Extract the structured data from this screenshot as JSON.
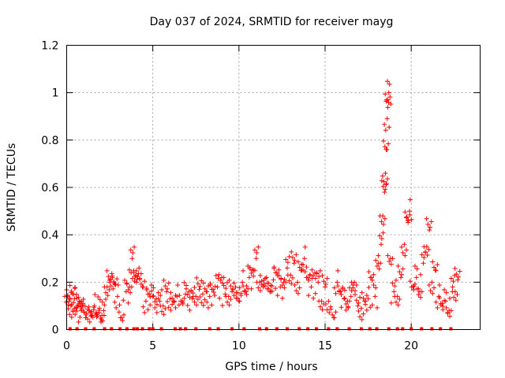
{
  "chart_data": {
    "type": "scatter",
    "title": "Day 037 of 2024, SRMTID for receiver mayg",
    "xlabel": "GPS time / hours",
    "ylabel": "SRMTID / TECUs",
    "xlim": [
      0,
      24
    ],
    "ylim": [
      0,
      1.2
    ],
    "xticks": [
      0,
      5,
      10,
      15,
      20
    ],
    "xtick_labels": [
      "0",
      "5",
      "10",
      "15",
      "20"
    ],
    "yticks": [
      0,
      0.2,
      0.4,
      0.6,
      0.8,
      1,
      1.2
    ],
    "ytick_labels": [
      "0",
      "0.2",
      "0.4",
      "0.6",
      "0.8",
      "1",
      "1.2"
    ],
    "grid": true,
    "marker": "plus",
    "color": "#ff0000",
    "series": [
      {
        "name": "SRMTID",
        "x": [
          0.05,
          0.15,
          0.25,
          0.35,
          0.45,
          0.55,
          0.65,
          0.75,
          0.85,
          0.95,
          1.1,
          1.3,
          1.45,
          1.6,
          1.75,
          1.9,
          2.05,
          2.15,
          2.35,
          2.5,
          2.65,
          2.8,
          2.95,
          3.2,
          3.45,
          3.65,
          3.8,
          3.9,
          4.05,
          4.2,
          4.4,
          4.6,
          4.8,
          5.0,
          5.2,
          5.4,
          5.6,
          5.8,
          6.0,
          6.2,
          6.4,
          6.7,
          6.9,
          7.1,
          7.3,
          7.5,
          7.7,
          7.9,
          8.1,
          8.3,
          8.5,
          8.75,
          9.0,
          9.2,
          9.4,
          9.6,
          9.8,
          10.0,
          10.2,
          10.4,
          10.6,
          10.8,
          11.0,
          11.2,
          11.4,
          11.6,
          11.8,
          12.0,
          12.2,
          12.4,
          12.6,
          12.8,
          13.0,
          13.2,
          13.4,
          13.6,
          13.8,
          14.0,
          14.2,
          14.4,
          14.6,
          14.8,
          15.0,
          15.2,
          15.5,
          15.7,
          15.9,
          16.1,
          16.3,
          16.5,
          16.7,
          16.9,
          17.1,
          17.3,
          17.5,
          17.7,
          17.9,
          18.1,
          18.25,
          18.35,
          18.45,
          18.5,
          18.55,
          18.6,
          18.65,
          18.7,
          18.8,
          19.0,
          19.2,
          19.4,
          19.6,
          19.8,
          19.9,
          20.1,
          20.3,
          20.5,
          20.7,
          20.9,
          21.05,
          21.2,
          21.4,
          21.6,
          21.8,
          22.0,
          22.2,
          22.4,
          22.55,
          22.7
        ],
        "y": [
          0.14,
          0.12,
          0.1,
          0.15,
          0.13,
          0.09,
          0.1,
          0.12,
          0.08,
          0.11,
          0.05,
          0.08,
          0.06,
          0.1,
          0.07,
          0.09,
          0.06,
          0.08,
          0.18,
          0.2,
          0.22,
          0.19,
          0.14,
          0.05,
          0.16,
          0.18,
          0.3,
          0.24,
          0.2,
          0.26,
          0.18,
          0.12,
          0.15,
          0.14,
          0.13,
          0.12,
          0.1,
          0.16,
          0.13,
          0.12,
          0.14,
          0.12,
          0.15,
          0.16,
          0.13,
          0.14,
          0.17,
          0.15,
          0.16,
          0.14,
          0.17,
          0.18,
          0.22,
          0.15,
          0.14,
          0.16,
          0.18,
          0.12,
          0.2,
          0.16,
          0.22,
          0.25,
          0.3,
          0.2,
          0.18,
          0.22,
          0.16,
          0.21,
          0.24,
          0.18,
          0.2,
          0.26,
          0.23,
          0.28,
          0.2,
          0.25,
          0.3,
          0.22,
          0.18,
          0.24,
          0.2,
          0.12,
          0.18,
          0.12,
          0.05,
          0.2,
          0.16,
          0.13,
          0.12,
          0.14,
          0.2,
          0.1,
          0.09,
          0.12,
          0.13,
          0.22,
          0.14,
          0.28,
          0.36,
          0.48,
          0.58,
          0.66,
          0.76,
          0.89,
          0.97,
          1.0,
          0.3,
          0.16,
          0.14,
          0.22,
          0.36,
          0.46,
          0.5,
          0.18,
          0.22,
          0.16,
          0.28,
          0.35,
          0.42,
          0.2,
          0.25,
          0.14,
          0.11,
          0.12,
          0.08,
          0.18,
          0.16,
          0.21
        ]
      }
    ],
    "rug_x": [
      0.2,
      0.6,
      1.1,
      1.6,
      2.2,
      2.6,
      3.1,
      3.5,
      3.9,
      4.1,
      4.4,
      4.8,
      5.0,
      5.5,
      6.3,
      6.6,
      6.9,
      7.5,
      8.3,
      8.8,
      9.6,
      10.3,
      11.2,
      11.6,
      12.2,
      12.8,
      13.5,
      14.0,
      14.5,
      15.2,
      15.7,
      16.4,
      17.1,
      17.6,
      18.0,
      18.7,
      19.2,
      19.5,
      20.0,
      20.6,
      21.2,
      21.7,
      22.3
    ]
  }
}
